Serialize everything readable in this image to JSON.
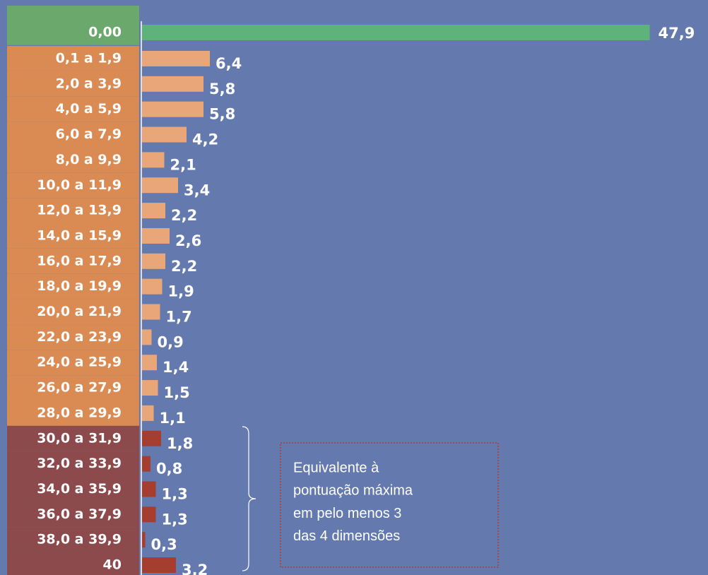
{
  "chart_data": {
    "type": "bar",
    "orientation": "horizontal",
    "categories": [
      "0,00",
      "0,1 a 1,9",
      "2,0 a 3,9",
      "4,0 a 5,9",
      "6,0 a 7,9",
      "8,0 a 9,9",
      "10,0 a 11,9",
      "12,0 a 13,9",
      "14,0 a 15,9",
      "16,0 a 17,9",
      "18,0 a 19,9",
      "20,0 a 21,9",
      "22,0 a 23,9",
      "24,0 a 25,9",
      "26,0 a 27,9",
      "28,0 a 29,9",
      "30,0 a 31,9",
      "32,0 a 33,9",
      "34,0 a 35,9",
      "36,0 a 37,9",
      "38,0 a 39,9",
      "40"
    ],
    "values": [
      47.9,
      6.4,
      5.8,
      5.8,
      4.2,
      2.1,
      3.4,
      2.2,
      2.6,
      2.2,
      1.9,
      1.7,
      0.9,
      1.4,
      1.5,
      1.1,
      1.8,
      0.8,
      1.3,
      1.3,
      0.3,
      3.2
    ],
    "value_labels": [
      "47,9",
      "6,4",
      "5,8",
      "5,8",
      "4,2",
      "2,1",
      "3,4",
      "2,2",
      "2,6",
      "2,2",
      "1,9",
      "1,7",
      "0,9",
      "1,4",
      "1,5",
      "1,1",
      "1,8",
      "0,8",
      "1,3",
      "1,3",
      "0,3",
      "3,2"
    ],
    "colors": [
      "#5db37a",
      "#e8a679",
      "#e8a679",
      "#e8a679",
      "#e8a679",
      "#e8a679",
      "#e8a679",
      "#e8a679",
      "#e8a679",
      "#e8a679",
      "#e8a679",
      "#e8a679",
      "#e8a679",
      "#e8a679",
      "#e8a679",
      "#e8a679",
      "#a63e30",
      "#a63e30",
      "#a63e30",
      "#a63e30",
      "#a63e30",
      "#a63e30"
    ],
    "label_colors": [
      "#6aa86c",
      "#d98b53",
      "#d98b53",
      "#d98b53",
      "#d98b53",
      "#d98b53",
      "#d98b53",
      "#d98b53",
      "#d98b53",
      "#d98b53",
      "#d98b53",
      "#d98b53",
      "#d98b53",
      "#d98b53",
      "#d98b53",
      "#d98b53",
      "#8c4a4c",
      "#8c4a4c",
      "#8c4a4c",
      "#8c4a4c",
      "#8c4a4c",
      "#8c4a4c"
    ],
    "xlim": [
      0,
      50
    ],
    "annotation": [
      "Equivalente à",
      "pontuação máxima",
      "em pelo menos 3",
      "das 4 dimensões"
    ]
  }
}
